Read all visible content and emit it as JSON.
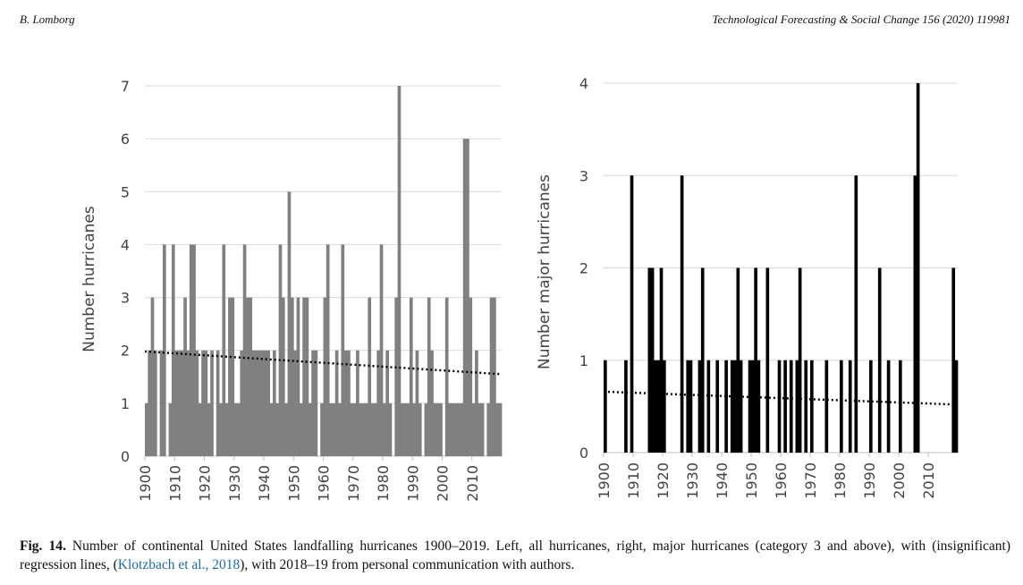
{
  "header": {
    "author": "B. Lomborg",
    "journal": "Technological Forecasting & Social Change 156 (2020) 119981"
  },
  "caption": {
    "label": "Fig. 14.",
    "text": " Number of continental United States landfalling hurricanes 1900–2019. Left, all hurricanes, right, major hurricanes (category 3 and above), with (insignificant) regression lines, (",
    "ref": "Klotzbach et al., 2018",
    "text_end": "), with 2018–19 from personal communication with authors."
  },
  "colors": {
    "left_bars": "#808080",
    "right_bars": "#000000",
    "grid": "#d9d9d9",
    "trend": "#000000"
  },
  "chart_data": [
    {
      "type": "bar",
      "title": "",
      "ylabel": "Number hurricanes",
      "xlabel": "",
      "x_start": 1900,
      "x_end": 2019,
      "ylim": [
        0,
        7
      ],
      "yticks": [
        0,
        1,
        2,
        3,
        4,
        5,
        6,
        7
      ],
      "xticks": [
        1900,
        1910,
        1920,
        1930,
        1940,
        1950,
        1960,
        1970,
        1980,
        1990,
        2000,
        2010
      ],
      "values": [
        1,
        2,
        3,
        2,
        0,
        2,
        4,
        0,
        1,
        4,
        2,
        2,
        2,
        3,
        2,
        4,
        4,
        2,
        1,
        2,
        2,
        1,
        2,
        0,
        2,
        1,
        4,
        1,
        3,
        3,
        1,
        1,
        2,
        4,
        3,
        3,
        2,
        2,
        2,
        2,
        2,
        2,
        1,
        2,
        1,
        4,
        3,
        1,
        5,
        3,
        2,
        3,
        1,
        3,
        3,
        1,
        2,
        2,
        0,
        1,
        3,
        4,
        1,
        1,
        2,
        1,
        4,
        2,
        2,
        1,
        1,
        2,
        1,
        1,
        1,
        3,
        1,
        1,
        2,
        4,
        1,
        2,
        1,
        0,
        3,
        7,
        1,
        1,
        1,
        3,
        1,
        2,
        1,
        0,
        1,
        3,
        2,
        1,
        1,
        1,
        0,
        3,
        1,
        1,
        1,
        1,
        1,
        6,
        6,
        3,
        1,
        2,
        1,
        1,
        0,
        1,
        3,
        3,
        1,
        1
      ],
      "trend": {
        "start": 1.98,
        "end": 1.55
      }
    },
    {
      "type": "bar",
      "title": "",
      "ylabel": "Number major hurricanes",
      "xlabel": "",
      "x_start": 1900,
      "x_end": 2019,
      "ylim": [
        0,
        4
      ],
      "yticks": [
        0,
        1,
        2,
        3,
        4
      ],
      "xticks": [
        1900,
        1910,
        1920,
        1930,
        1940,
        1950,
        1960,
        1970,
        1980,
        1990,
        2000,
        2010
      ],
      "values": [
        1,
        0,
        0,
        0,
        0,
        0,
        0,
        1,
        0,
        3,
        0,
        0,
        0,
        0,
        0,
        2,
        2,
        1,
        1,
        2,
        1,
        0,
        0,
        0,
        0,
        0,
        3,
        0,
        1,
        1,
        0,
        0,
        1,
        2,
        0,
        1,
        0,
        0,
        1,
        0,
        0,
        1,
        0,
        1,
        1,
        2,
        1,
        0,
        0,
        1,
        1,
        2,
        1,
        0,
        0,
        2,
        0,
        0,
        0,
        1,
        0,
        1,
        0,
        1,
        0,
        1,
        2,
        0,
        1,
        0,
        1,
        0,
        0,
        0,
        0,
        1,
        0,
        0,
        0,
        0,
        1,
        0,
        0,
        1,
        0,
        3,
        0,
        0,
        0,
        0,
        1,
        0,
        0,
        2,
        0,
        0,
        1,
        0,
        0,
        0,
        1,
        0,
        0,
        0,
        0,
        3,
        4,
        0,
        0,
        0,
        0,
        0,
        0,
        0,
        0,
        0,
        0,
        0,
        2,
        1
      ],
      "trend": {
        "start": 0.66,
        "end": 0.52
      }
    }
  ]
}
